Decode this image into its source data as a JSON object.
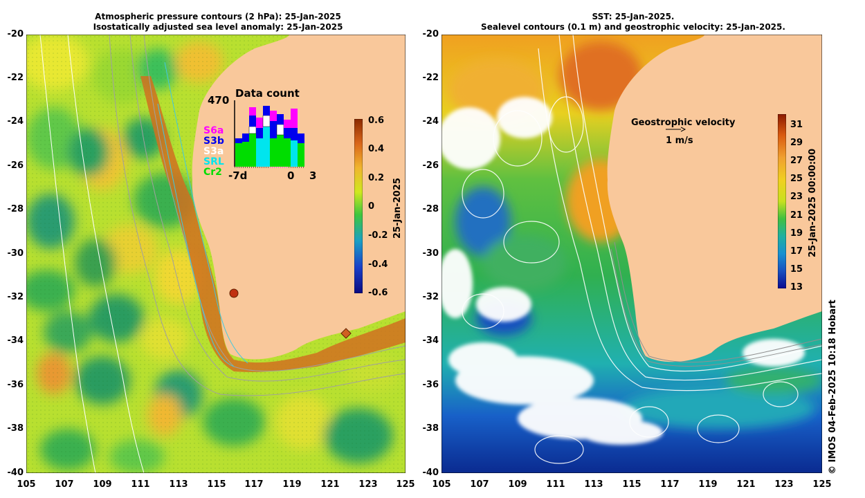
{
  "left_panel": {
    "title_line1": "Atmospheric pressure contours (2 hPa): 25-Jan-2025",
    "title_line2": "Isostatically adjusted sea level anomaly: 25-Jan-2025",
    "colorbar": {
      "ticks": [
        "0.6",
        "0.4",
        "0.2",
        "0",
        "-0.2",
        "-0.4",
        "-0.6"
      ],
      "label": "25-Jan-2025",
      "colors": [
        "#8b2a00",
        "#d9661a",
        "#f0b52e",
        "#cfe81f",
        "#3ec63e",
        "#1a9fc4",
        "#1a40c8",
        "#0a0a80"
      ]
    },
    "data_count": {
      "title": "Data count",
      "max_label": "470",
      "x_labels": [
        "-7d",
        "0",
        "3"
      ],
      "satellites": [
        {
          "name": "S6a",
          "color": "#ff00ff"
        },
        {
          "name": "S3b",
          "color": "#0000ee"
        },
        {
          "name": "S3a",
          "color": "#ffffff"
        },
        {
          "name": "SRL",
          "color": "#00e5ee"
        },
        {
          "name": "Cr2",
          "color": "#00dd00"
        }
      ]
    }
  },
  "right_panel": {
    "title_line1": "SST: 25-Jan-2025.",
    "title_line2": "Sealevel contours (0.1 m) and geostrophic velocity: 25-Jan-2025.",
    "colorbar": {
      "ticks": [
        "31",
        "29",
        "27",
        "25",
        "23",
        "21",
        "19",
        "17",
        "15",
        "13"
      ],
      "label": "25-Jan-2025 00:00:00",
      "colors": [
        "#8b1a00",
        "#d95a10",
        "#f0a030",
        "#f0d020",
        "#c8e020",
        "#40c040",
        "#20b0a0",
        "#1890d0",
        "#1850c0",
        "#0a0a90"
      ]
    },
    "velocity_label": "Geostrophic velocity",
    "velocity_scale": "1 m/s"
  },
  "axes": {
    "y_ticks": [
      "-20",
      "-22",
      "-24",
      "-26",
      "-28",
      "-30",
      "-32",
      "-34",
      "-36",
      "-38",
      "-40"
    ],
    "x_ticks": [
      "105",
      "107",
      "109",
      "111",
      "113",
      "115",
      "117",
      "119",
      "121",
      "123",
      "125"
    ]
  },
  "land_color": "#f9c89b",
  "credit": "© IMOS 04-Feb-2025 10:18 Hobart"
}
